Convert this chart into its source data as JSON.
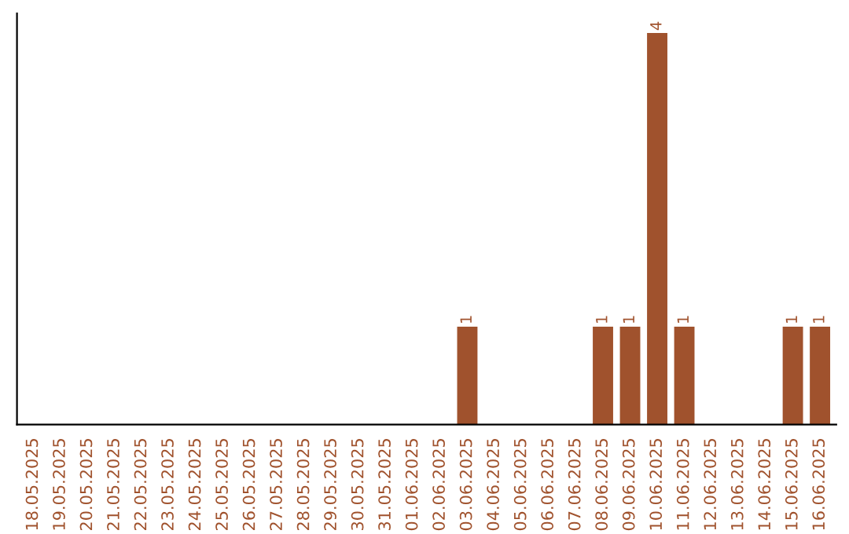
{
  "chart_data": {
    "type": "bar",
    "categories": [
      "18.05.2025",
      "19.05.2025",
      "20.05.2025",
      "21.05.2025",
      "22.05.2025",
      "23.05.2025",
      "24.05.2025",
      "25.05.2025",
      "26.05.2025",
      "27.05.2025",
      "28.05.2025",
      "29.05.2025",
      "30.05.2025",
      "31.05.2025",
      "01.06.2025",
      "02.06.2025",
      "03.06.2025",
      "04.06.2025",
      "05.06.2025",
      "06.06.2025",
      "07.06.2025",
      "08.06.2025",
      "09.06.2025",
      "10.06.2025",
      "11.06.2025",
      "12.06.2025",
      "13.06.2025",
      "14.06.2025",
      "15.06.2025",
      "16.06.2025"
    ],
    "values": [
      null,
      null,
      null,
      null,
      null,
      null,
      null,
      null,
      null,
      null,
      null,
      null,
      null,
      null,
      null,
      null,
      1,
      null,
      null,
      null,
      null,
      1,
      1,
      4,
      1,
      null,
      null,
      null,
      1,
      1
    ],
    "data_labels": true,
    "color": "#a0522d",
    "tick_labels": "x",
    "grid": false,
    "legend": false
  }
}
